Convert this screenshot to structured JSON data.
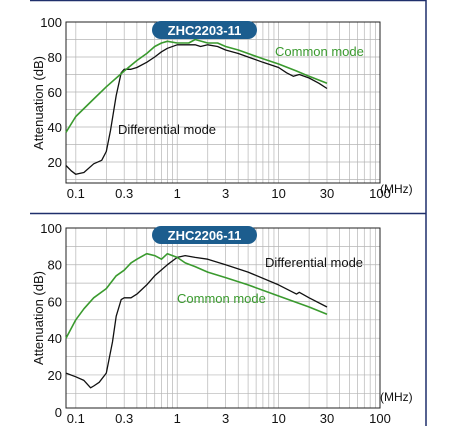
{
  "colors": {
    "differential": "#111111",
    "common": "#3a9a2e",
    "badge": "#1c5d8e",
    "frame": "#1f2f6b",
    "grid": "#b5b5b5"
  },
  "chart_data": [
    {
      "type": "line",
      "title": "ZHC2203-11",
      "ylabel": "Attenuation (dB)",
      "xunit": "(MHz)",
      "xscale": "log",
      "xlim": [
        0.08,
        100
      ],
      "ylim": [
        8,
        100
      ],
      "xticks": [
        0.1,
        0.3,
        1,
        3,
        10,
        30,
        100
      ],
      "xtick_labels": [
        "0.1",
        "0.3",
        "1",
        "3",
        "10",
        "30",
        "100"
      ],
      "yticks": [
        20,
        40,
        60,
        80,
        100
      ],
      "ytick_labels": [
        "20",
        "40",
        "60",
        "80",
        "100"
      ],
      "grid": true,
      "annotations": [
        {
          "text": "Common mode",
          "series": "common"
        },
        {
          "text": "Differential mode",
          "series": "differential"
        }
      ],
      "series": [
        {
          "name": "Differential mode",
          "key": "differential",
          "x": [
            0.08,
            0.09,
            0.1,
            0.12,
            0.15,
            0.18,
            0.2,
            0.22,
            0.25,
            0.28,
            0.3,
            0.35,
            0.4,
            0.5,
            0.6,
            0.7,
            0.8,
            1,
            1.2,
            1.5,
            1.7,
            2,
            2.5,
            3,
            4,
            5,
            7,
            10,
            12,
            14,
            16,
            20,
            25,
            30
          ],
          "y": [
            18,
            15,
            13,
            14,
            19,
            21,
            26,
            38,
            58,
            71,
            73,
            73,
            74,
            77,
            80,
            83,
            85,
            87,
            87,
            87,
            86,
            87,
            86,
            84,
            82,
            80,
            77,
            74,
            71,
            69,
            70,
            68,
            65,
            62
          ]
        },
        {
          "name": "Common mode",
          "key": "common",
          "x": [
            0.08,
            0.1,
            0.15,
            0.2,
            0.3,
            0.4,
            0.5,
            0.6,
            0.7,
            0.8,
            1,
            1.3,
            1.5,
            2,
            2.5,
            3,
            4,
            5,
            7,
            10,
            15,
            20,
            30
          ],
          "y": [
            37,
            46,
            56,
            63,
            72,
            78,
            82,
            86,
            88,
            89,
            88,
            88,
            90,
            88,
            88,
            86,
            84,
            82,
            79,
            76,
            72,
            69,
            65
          ]
        }
      ]
    },
    {
      "type": "line",
      "title": "ZHC2206-11",
      "ylabel": "Attenuation (dB)",
      "xunit": "(MHz)",
      "xscale": "log",
      "xlim": [
        0.08,
        100
      ],
      "ylim": [
        2,
        100
      ],
      "xticks": [
        0.1,
        0.3,
        1,
        3,
        10,
        30,
        100
      ],
      "xtick_labels": [
        "0.1",
        "0.3",
        "1",
        "3",
        "10",
        "30",
        "100"
      ],
      "yticks": [
        0,
        20,
        40,
        60,
        80,
        100
      ],
      "ytick_labels": [
        "0",
        "20",
        "40",
        "60",
        "80",
        "100"
      ],
      "grid": true,
      "annotations": [
        {
          "text": "Differential mode",
          "series": "differential"
        },
        {
          "text": "Common mode",
          "series": "common"
        }
      ],
      "series": [
        {
          "name": "Differential mode",
          "key": "differential",
          "x": [
            0.08,
            0.1,
            0.12,
            0.14,
            0.15,
            0.17,
            0.2,
            0.23,
            0.25,
            0.28,
            0.3,
            0.35,
            0.4,
            0.5,
            0.6,
            0.8,
            1,
            1.2,
            1.5,
            2,
            3,
            5,
            10,
            15,
            16,
            20,
            30
          ],
          "y": [
            21,
            19,
            17,
            13,
            14,
            16,
            21,
            38,
            52,
            61,
            62,
            62,
            64,
            69,
            74,
            80,
            84,
            85,
            84,
            83,
            80,
            76,
            69,
            64,
            65,
            62,
            57
          ]
        },
        {
          "name": "Common mode",
          "key": "common",
          "x": [
            0.08,
            0.1,
            0.12,
            0.15,
            0.2,
            0.25,
            0.3,
            0.35,
            0.4,
            0.5,
            0.6,
            0.7,
            0.8,
            1,
            1.2,
            1.5,
            2,
            3,
            5,
            10,
            20,
            30
          ],
          "y": [
            40,
            50,
            56,
            62,
            67,
            74,
            77,
            81,
            83,
            86,
            85,
            83,
            86,
            84,
            81,
            79,
            76,
            73,
            69,
            63,
            57,
            53
          ]
        }
      ]
    }
  ]
}
